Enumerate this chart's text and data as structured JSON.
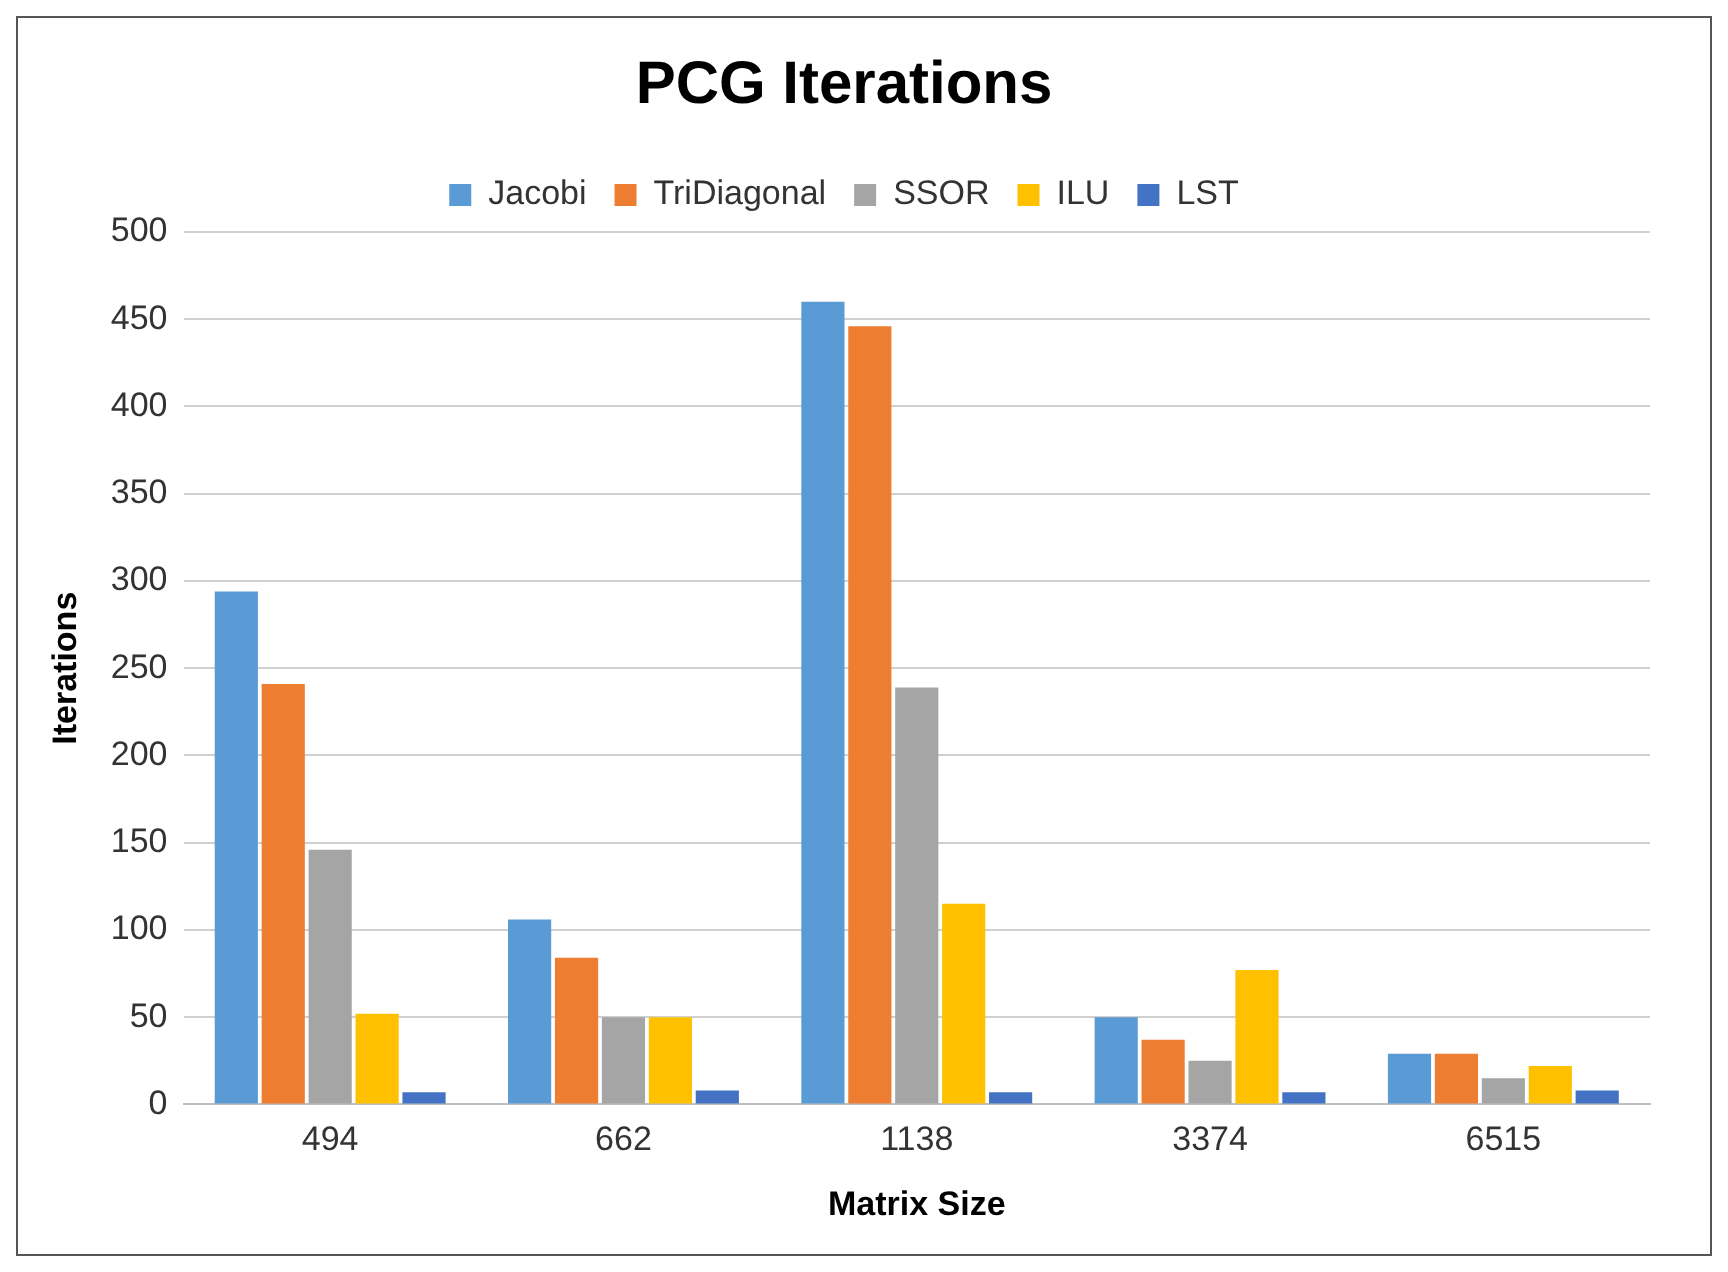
{
  "chart_data": {
    "type": "bar",
    "title": "PCG Iterations",
    "xlabel": "Matrix Size",
    "ylabel": "Iterations",
    "categories": [
      "494",
      "662",
      "1138",
      "3374",
      "6515"
    ],
    "series": [
      {
        "name": "Jacobi",
        "color": "#5b9bd5",
        "values": [
          294,
          106,
          460,
          50,
          29
        ]
      },
      {
        "name": "TriDiagonal",
        "color": "#ed7d31",
        "values": [
          241,
          84,
          446,
          37,
          29
        ]
      },
      {
        "name": "SSOR",
        "color": "#a5a5a5",
        "values": [
          146,
          50,
          239,
          25,
          15
        ]
      },
      {
        "name": "ILU",
        "color": "#ffc000",
        "values": [
          52,
          50,
          115,
          77,
          22
        ]
      },
      {
        "name": "LST",
        "color": "#4472c4",
        "values": [
          7,
          8,
          7,
          7,
          8
        ]
      }
    ],
    "ylim": [
      0,
      500
    ],
    "yticks": [
      0,
      50,
      100,
      150,
      200,
      250,
      300,
      350,
      400,
      450,
      500
    ],
    "grid": "y",
    "legend": "top"
  }
}
